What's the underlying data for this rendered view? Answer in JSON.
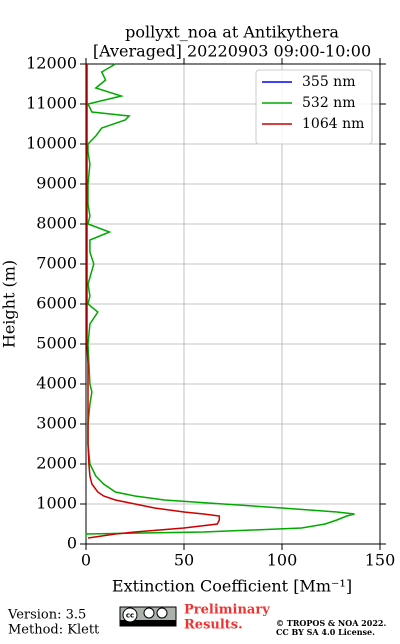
{
  "chart_data": {
    "type": "line",
    "title": "pollyxt_noa at Antikythera",
    "subtitle": "[Averaged] 20220903 09:00-10:00",
    "x_label": "Extinction Coefficient [Mm⁻¹]",
    "y_label": "Height (m)",
    "xlim": [
      0,
      150
    ],
    "xticks": [
      0,
      50,
      100,
      150
    ],
    "ylim": [
      0,
      12000
    ],
    "yticks": [
      0,
      1000,
      2000,
      3000,
      4000,
      5000,
      6000,
      7000,
      8000,
      9000,
      10000,
      11000,
      12000
    ],
    "grid": true,
    "legend": "upper right",
    "y": [
      150,
      250,
      300,
      400,
      500,
      600,
      700,
      750,
      800,
      900,
      1000,
      1100,
      1200,
      1300,
      1500,
      1700,
      2000,
      2500,
      3000,
      3500,
      3800,
      4000,
      4500,
      5000,
      5500,
      5800,
      6000,
      6200,
      6500,
      7000,
      7300,
      7600,
      7800,
      8000,
      8200,
      8500,
      9000,
      9500,
      9800,
      10000,
      10200,
      10400,
      10600,
      10700,
      10800,
      11000,
      11200,
      11400,
      11600,
      11800,
      12000
    ],
    "series": [
      {
        "name": "355 nm",
        "color": "#0000ff",
        "values": [
          null,
          null,
          null,
          null,
          null,
          null,
          null,
          null,
          null,
          null,
          null,
          null,
          null,
          null,
          null,
          null,
          null,
          null,
          null,
          null,
          null,
          null,
          null,
          null,
          null,
          null,
          null,
          null,
          null,
          null,
          null,
          null,
          null,
          null,
          null,
          null,
          null,
          null,
          null,
          null,
          null,
          null,
          null,
          null,
          null,
          null,
          null,
          null,
          null,
          null,
          null
        ]
      },
      {
        "name": "532 nm",
        "color": "#00aa00",
        "values": [
          0,
          0,
          60,
          110,
          122,
          128,
          133,
          137,
          128,
          100,
          70,
          40,
          25,
          15,
          9,
          5,
          2,
          1,
          1,
          2,
          3,
          2,
          1.5,
          1,
          2,
          6,
          1,
          2,
          1,
          4,
          2,
          2,
          12,
          1,
          2,
          1,
          1,
          2,
          1,
          1,
          5,
          8,
          20,
          22,
          3,
          1,
          18,
          5,
          10,
          8,
          15
        ]
      },
      {
        "name": "1064 nm",
        "color": "#cc0000",
        "values": [
          1,
          15,
          25,
          50,
          67,
          68,
          68,
          60,
          50,
          35,
          25,
          15,
          9,
          6,
          3,
          2,
          1.5,
          1,
          1,
          1,
          1,
          1,
          1,
          0.5,
          0.5,
          0.5,
          0.5,
          0.5,
          0.5,
          0.5,
          0.5,
          0.5,
          0.5,
          0.5,
          0.5,
          0.5,
          0.5,
          0.5,
          0.5,
          0.5,
          0.5,
          0.5,
          0.5,
          0.5,
          0.5,
          0.5,
          0.5,
          0.5,
          0.5,
          0.5,
          0.5
        ]
      }
    ]
  },
  "footer": {
    "version": "Version: 3.5",
    "method": "Method: Klett",
    "preliminary": "Preliminary",
    "results": "Results.",
    "copyright": "© TROPOS & NOA 2022.",
    "license": "CC BY SA 4.0 License."
  }
}
